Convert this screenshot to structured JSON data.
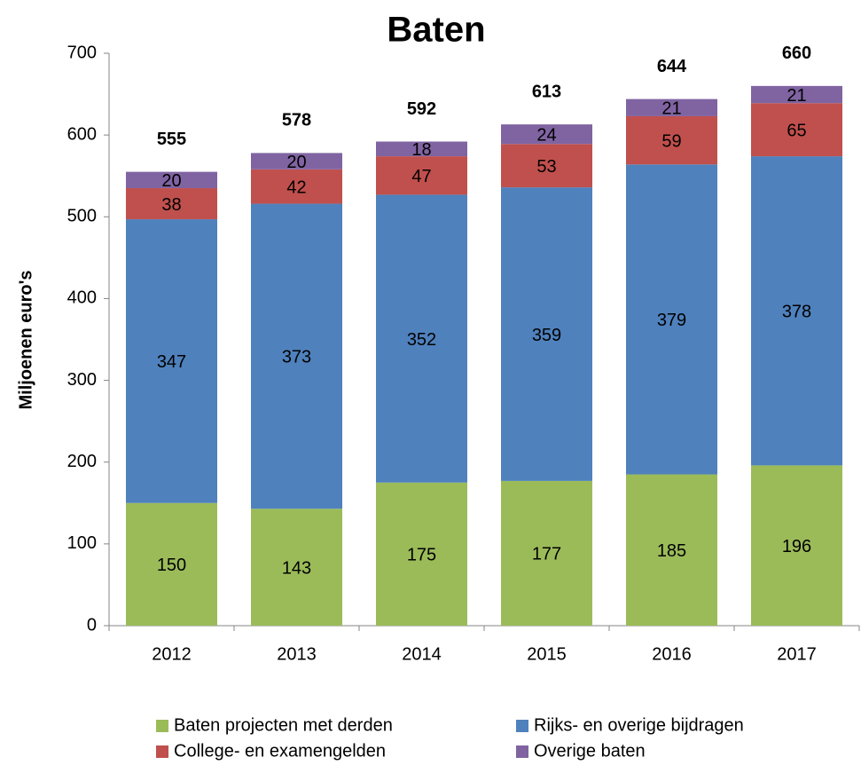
{
  "chart_data": {
    "type": "stacked_bar",
    "title": "Baten",
    "y_label": "Miljoenen euro's",
    "categories": [
      "2012",
      "2013",
      "2014",
      "2015",
      "2016",
      "2017"
    ],
    "series": [
      {
        "name": "Baten projecten met derden",
        "color": "#9bbb59",
        "values": [
          150,
          143,
          175,
          177,
          185,
          196
        ]
      },
      {
        "name": "Rijks- en overige bijdragen",
        "color": "#4f81bd",
        "values": [
          347,
          373,
          352,
          359,
          379,
          378
        ]
      },
      {
        "name": "College- en examengelden",
        "color": "#c0504d",
        "values": [
          38,
          42,
          47,
          53,
          59,
          65
        ]
      },
      {
        "name": "Overige baten",
        "color": "#8064a2",
        "values": [
          20,
          20,
          18,
          24,
          21,
          21
        ]
      }
    ],
    "totals": [
      555,
      578,
      592,
      613,
      644,
      660
    ],
    "ylim": [
      0,
      700
    ],
    "yticks": [
      0,
      100,
      200,
      300,
      400,
      500,
      600,
      700
    ],
    "grid": false
  }
}
